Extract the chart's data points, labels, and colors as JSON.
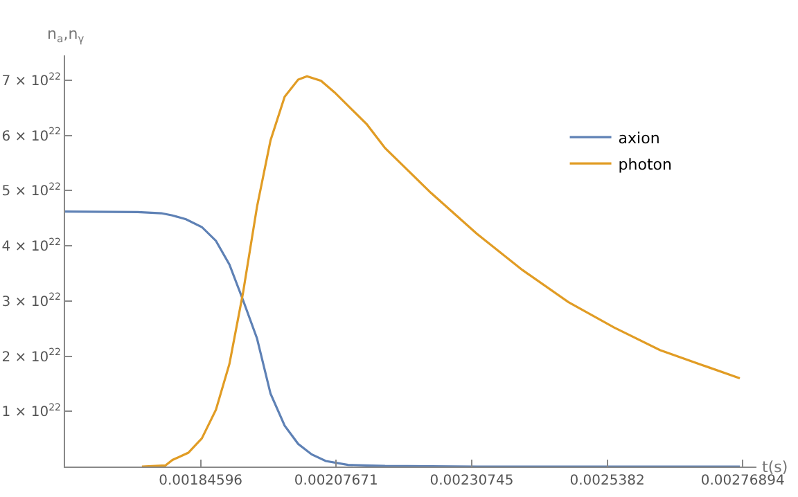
{
  "chart_data": {
    "type": "line",
    "xlabel": "t(s)",
    "ylabel": "n$_{a}$,n$_{γ}$",
    "xlim": [
      0.00161522,
      0.0027923
    ],
    "xticks": [
      0.00184596,
      0.00207671,
      0.00230745,
      0.0025382,
      0.00276894
    ],
    "ylim": [
      0,
      7.45e+22
    ],
    "yticks": [
      {
        "value": 1e+22,
        "label": "1 × 10$^{22}$"
      },
      {
        "value": 2e+22,
        "label": "2 × 10$^{22}$"
      },
      {
        "value": 3e+22,
        "label": "3 × 10$^{22}$"
      },
      {
        "value": 4e+22,
        "label": "4 × 10$^{22}$"
      },
      {
        "value": 5e+22,
        "label": "5 × 10$^{22}$"
      },
      {
        "value": 6e+22,
        "label": "6 × 10$^{22}$"
      },
      {
        "value": 7e+22,
        "label": "7 × 10$^{22}$"
      }
    ],
    "grid": false,
    "legend": "top right",
    "marker": "none",
    "line_style": "solid",
    "series": [
      {
        "name": "axion",
        "color": "#5e81b5",
        "x": [
          0.00161522,
          0.001739,
          0.001779,
          0.001798,
          0.001821,
          0.001848,
          0.001872,
          0.001895,
          0.001918,
          0.001942,
          0.001965,
          0.001989,
          0.002012,
          0.002035,
          0.002059,
          0.002097,
          0.00216,
          0.002316,
          0.002764
        ],
        "values": [
          4.62e+22,
          4.61e+22,
          4.59e+22,
          4.55e+22,
          4.48e+22,
          4.34e+22,
          4.09e+22,
          3.66e+22,
          3.02e+22,
          2.32e+22,
          1.32e+22,
          7.4e+21,
          4.1e+21,
          2.2e+21,
          1e+21,
          3e+20,
          1e+20,
          0,
          0
        ]
      },
      {
        "name": "photon",
        "color": "#e19c24",
        "x": [
          0.001746,
          0.001786,
          0.001798,
          0.001825,
          0.001848,
          0.001872,
          0.001895,
          0.001918,
          0.001942,
          0.001965,
          0.001989,
          0.002012,
          0.002027,
          0.002051,
          0.002074,
          0.002129,
          0.00216,
          0.002238,
          0.002316,
          0.002394,
          0.002472,
          0.00255,
          0.002628,
          0.002705,
          0.002764
        ],
        "values": [
          0,
          2e+20,
          1.2e+21,
          2.5e+21,
          5.1e+21,
          1.03e+22,
          1.86e+22,
          3.14e+22,
          4.71e+22,
          5.91e+22,
          6.7e+22,
          7.01e+22,
          7.07e+22,
          6.99e+22,
          6.78e+22,
          6.2e+22,
          5.77e+22,
          4.96e+22,
          4.22e+22,
          3.56e+22,
          2.98e+22,
          2.52e+22,
          2.11e+22,
          1.82e+22,
          1.6e+22
        ]
      }
    ]
  }
}
